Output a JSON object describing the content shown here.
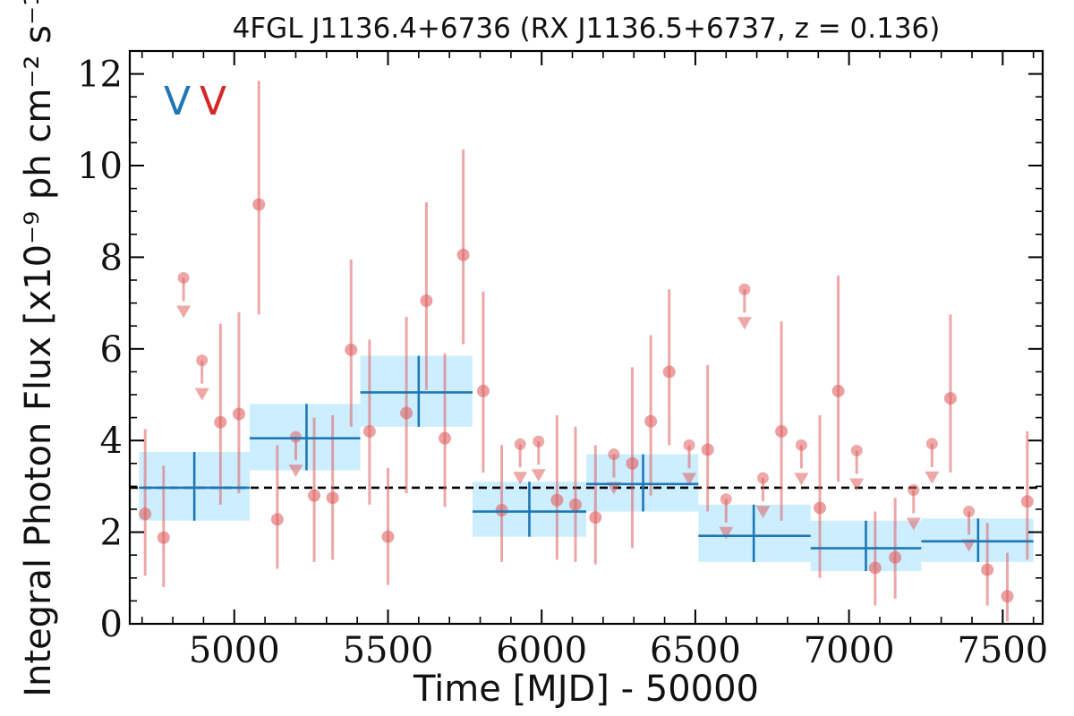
{
  "chart_data": {
    "type": "scatter",
    "title": "4FGL J1136.4+6736 (RX J1136.5+6737, z = 0.136)",
    "xlabel": "Time [MJD] - 50000",
    "ylabel": "Integral Photon Flux [x10⁻⁹ ph cm⁻² s⁻¹]",
    "xlim": [
      4660,
      7630
    ],
    "ylim": [
      0,
      12.5
    ],
    "x_ticks": [
      5000,
      5500,
      6000,
      6500,
      7000,
      7500
    ],
    "x_tick_labels": [
      "5000",
      "5500",
      "6000",
      "6500",
      "7000",
      "7500"
    ],
    "y_ticks": [
      0,
      2,
      4,
      6,
      8,
      10,
      12
    ],
    "y_tick_labels": [
      "0",
      "2",
      "4",
      "6",
      "8",
      "10",
      "12"
    ],
    "grid": false,
    "legend": {
      "placement": "top-left",
      "markers": [
        {
          "text": "V",
          "color": "#1f77b4"
        },
        {
          "text": "V",
          "color": "#d62728"
        }
      ]
    },
    "mean_level": 2.97,
    "series": [
      {
        "kind": "binned",
        "color": "#1f77b4",
        "band_color": "#cceeff",
        "points": [
          {
            "x": 4870,
            "x_lo": 4690,
            "x_hi": 5050,
            "y": 2.97,
            "y_lo": 2.25,
            "y_hi": 3.75
          },
          {
            "x": 5235,
            "x_lo": 5050,
            "x_hi": 5410,
            "y": 4.05,
            "y_lo": 3.35,
            "y_hi": 4.8
          },
          {
            "x": 5600,
            "x_lo": 5410,
            "x_hi": 5775,
            "y": 5.05,
            "y_lo": 4.3,
            "y_hi": 5.85
          },
          {
            "x": 5960,
            "x_lo": 5775,
            "x_hi": 6145,
            "y": 2.45,
            "y_lo": 1.9,
            "y_hi": 3.1
          },
          {
            "x": 6330,
            "x_lo": 6145,
            "x_hi": 6510,
            "y": 3.05,
            "y_lo": 2.45,
            "y_hi": 3.7
          },
          {
            "x": 6690,
            "x_lo": 6510,
            "x_hi": 6875,
            "y": 1.92,
            "y_lo": 1.35,
            "y_hi": 2.6
          },
          {
            "x": 7055,
            "x_lo": 6875,
            "x_hi": 7235,
            "y": 1.65,
            "y_lo": 1.15,
            "y_hi": 2.25
          },
          {
            "x": 7420,
            "x_lo": 7235,
            "x_hi": 7600,
            "y": 1.8,
            "y_lo": 1.35,
            "y_hi": 2.3
          }
        ]
      },
      {
        "kind": "fine",
        "color": "#e06060",
        "points": [
          {
            "x": 4710,
            "y": 2.4,
            "y_lo": 1.05,
            "y_hi": 4.25
          },
          {
            "x": 4770,
            "y": 1.88,
            "y_lo": 0.8,
            "y_hi": 3.45
          },
          {
            "x": 4835,
            "y": 7.55,
            "upper_limit": true
          },
          {
            "x": 4895,
            "y": 5.75,
            "upper_limit": true
          },
          {
            "x": 4955,
            "y": 4.4,
            "y_lo": 2.6,
            "y_hi": 6.55
          },
          {
            "x": 5015,
            "y": 4.58,
            "y_lo": 2.85,
            "y_hi": 6.8
          },
          {
            "x": 5080,
            "y": 9.15,
            "y_lo": 6.75,
            "y_hi": 11.85
          },
          {
            "x": 5140,
            "y": 2.28,
            "y_lo": 1.2,
            "y_hi": 3.9
          },
          {
            "x": 5200,
            "y": 4.08,
            "upper_limit": true
          },
          {
            "x": 5260,
            "y": 2.8,
            "y_lo": 1.35,
            "y_hi": 4.5
          },
          {
            "x": 5320,
            "y": 2.75,
            "y_lo": 1.4,
            "y_hi": 4.55
          },
          {
            "x": 5380,
            "y": 5.98,
            "y_lo": 4.3,
            "y_hi": 7.95
          },
          {
            "x": 5440,
            "y": 4.2,
            "y_lo": 2.6,
            "y_hi": 6.2
          },
          {
            "x": 5500,
            "y": 1.9,
            "y_lo": 0.85,
            "y_hi": 3.4
          },
          {
            "x": 5560,
            "y": 4.6,
            "y_lo": 2.85,
            "y_hi": 6.7
          },
          {
            "x": 5625,
            "y": 7.05,
            "y_lo": 5.1,
            "y_hi": 9.2
          },
          {
            "x": 5685,
            "y": 4.05,
            "y_lo": 2.55,
            "y_hi": 5.9
          },
          {
            "x": 5745,
            "y": 8.05,
            "y_lo": 6.1,
            "y_hi": 10.35
          },
          {
            "x": 5810,
            "y": 5.08,
            "y_lo": 3.3,
            "y_hi": 7.25
          },
          {
            "x": 5870,
            "y": 2.48,
            "y_lo": 1.35,
            "y_hi": 3.9
          },
          {
            "x": 5930,
            "y": 3.92,
            "upper_limit": true
          },
          {
            "x": 5990,
            "y": 3.98,
            "upper_limit": true
          },
          {
            "x": 6050,
            "y": 2.7,
            "y_lo": 1.4,
            "y_hi": 4.55
          },
          {
            "x": 6110,
            "y": 2.6,
            "y_lo": 1.35,
            "y_hi": 4.3
          },
          {
            "x": 6175,
            "y": 2.32,
            "y_lo": 1.3,
            "y_hi": 3.9
          },
          {
            "x": 6235,
            "y": 3.7,
            "upper_limit": true
          },
          {
            "x": 6295,
            "y": 3.5,
            "y_lo": 1.65,
            "y_hi": 5.6
          },
          {
            "x": 6355,
            "y": 4.42,
            "y_lo": 2.8,
            "y_hi": 6.3
          },
          {
            "x": 6415,
            "y": 5.5,
            "y_lo": 3.9,
            "y_hi": 7.3
          },
          {
            "x": 6480,
            "y": 3.9,
            "upper_limit": true
          },
          {
            "x": 6540,
            "y": 3.8,
            "y_lo": 2.45,
            "y_hi": 5.65
          },
          {
            "x": 6600,
            "y": 2.72,
            "upper_limit": true
          },
          {
            "x": 6660,
            "y": 7.3,
            "upper_limit": true
          },
          {
            "x": 6720,
            "y": 3.18,
            "upper_limit": true
          },
          {
            "x": 6780,
            "y": 4.2,
            "y_lo": 2.25,
            "y_hi": 6.6
          },
          {
            "x": 6845,
            "y": 3.9,
            "upper_limit": true
          },
          {
            "x": 6905,
            "y": 2.53,
            "y_lo": 1.0,
            "y_hi": 4.55
          },
          {
            "x": 6965,
            "y": 5.08,
            "y_lo": 3.1,
            "y_hi": 7.6
          },
          {
            "x": 7025,
            "y": 3.78,
            "upper_limit": true
          },
          {
            "x": 7085,
            "y": 1.22,
            "y_lo": 0.4,
            "y_hi": 2.45
          },
          {
            "x": 7150,
            "y": 1.45,
            "y_lo": 0.55,
            "y_hi": 2.75
          },
          {
            "x": 7210,
            "y": 2.92,
            "upper_limit": true
          },
          {
            "x": 7270,
            "y": 3.93,
            "upper_limit": true
          },
          {
            "x": 7330,
            "y": 4.92,
            "y_lo": 3.3,
            "y_hi": 6.75
          },
          {
            "x": 7390,
            "y": 2.45,
            "upper_limit": true
          },
          {
            "x": 7450,
            "y": 1.18,
            "y_lo": 0.4,
            "y_hi": 2.2
          },
          {
            "x": 7515,
            "y": 0.6,
            "y_lo": 0.05,
            "y_hi": 1.55
          },
          {
            "x": 7580,
            "y": 2.67,
            "y_lo": 1.4,
            "y_hi": 4.2
          }
        ]
      }
    ]
  }
}
